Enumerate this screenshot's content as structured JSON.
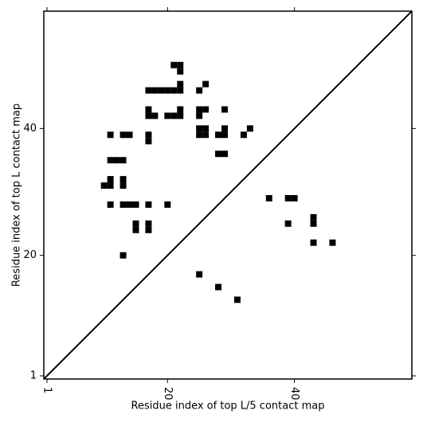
{
  "chart_data": {
    "type": "scatter",
    "xlabel": "Residue index of top L/5 contact map",
    "ylabel": "Residue index of top L contact map",
    "xlim": [
      0.5,
      58.5
    ],
    "ylim": [
      0.5,
      58.5
    ],
    "xticks": [
      1,
      20,
      40
    ],
    "yticks": [
      1,
      20,
      40
    ],
    "color": "#000000",
    "series": [
      {
        "x": [
          21,
          22,
          22,
          17,
          18,
          19,
          20,
          21,
          22,
          22,
          25,
          26,
          17,
          17,
          18,
          20,
          21,
          22,
          22,
          25,
          26,
          25,
          29,
          25,
          26,
          25,
          26,
          29,
          28,
          29,
          33,
          32,
          11,
          13,
          14,
          17,
          17,
          28,
          29,
          11,
          12,
          13,
          11,
          11,
          10,
          13,
          13,
          11,
          13,
          14,
          15,
          17,
          20,
          15,
          15,
          17,
          17,
          13,
          25,
          28,
          31,
          36,
          39,
          40,
          39,
          43,
          43,
          43,
          46
        ],
        "y": [
          50,
          50,
          49,
          46,
          46,
          46,
          46,
          46,
          46,
          47,
          46,
          47,
          43,
          42,
          42,
          42,
          42,
          42,
          43,
          43,
          43,
          42,
          43,
          40,
          40,
          39,
          39,
          40,
          39,
          39,
          40,
          39,
          39,
          39,
          39,
          39,
          38,
          36,
          36,
          35,
          35,
          35,
          32,
          31,
          31,
          32,
          31,
          28,
          28,
          28,
          28,
          28,
          28,
          25,
          24,
          25,
          24,
          20,
          17,
          15,
          13,
          29,
          29,
          29,
          25,
          26,
          25,
          22,
          22
        ]
      }
    ]
  }
}
